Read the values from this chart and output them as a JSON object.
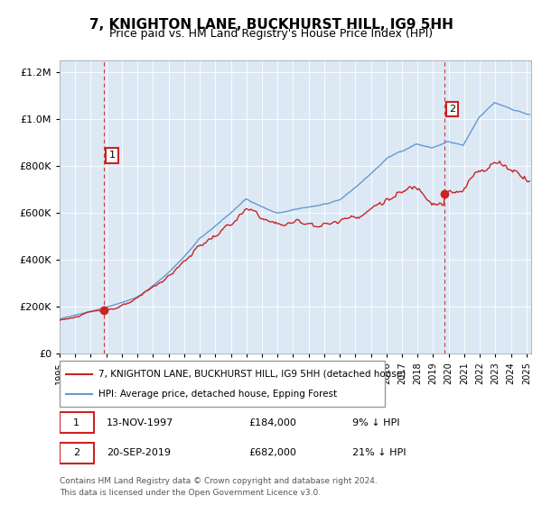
{
  "title": "7, KNIGHTON LANE, BUCKHURST HILL, IG9 5HH",
  "subtitle": "Price paid vs. HM Land Registry's House Price Index (HPI)",
  "bg_color": "#dce9f5",
  "plot_bg_color": "#dce9f5",
  "hpi_color": "#6699cc",
  "price_color": "#cc2222",
  "sale1_date": "13-NOV-1997",
  "sale1_price": 184000,
  "sale1_label": "1",
  "sale1_year": 1997.87,
  "sale2_date": "20-SEP-2019",
  "sale2_price": 682000,
  "sale2_label": "2",
  "sale2_year": 2019.72,
  "legend_line1": "7, KNIGHTON LANE, BUCKHURST HILL, IG9 5HH (detached house)",
  "legend_line2": "HPI: Average price, detached house, Epping Forest",
  "footer1": "Contains HM Land Registry data © Crown copyright and database right 2024.",
  "footer2": "This data is licensed under the Open Government Licence v3.0.",
  "table_row1_label": "1",
  "table_row1_date": "13-NOV-1997",
  "table_row1_price": "£184,000",
  "table_row1_pct": "9% ↓ HPI",
  "table_row2_label": "2",
  "table_row2_date": "20-SEP-2019",
  "table_row2_price": "£682,000",
  "table_row2_pct": "21% ↓ HPI",
  "xmin": 1995.0,
  "xmax": 2025.3,
  "ymin": 0,
  "ymax": 1250000,
  "yticks": [
    0,
    200000,
    400000,
    600000,
    800000,
    1000000,
    1200000
  ]
}
